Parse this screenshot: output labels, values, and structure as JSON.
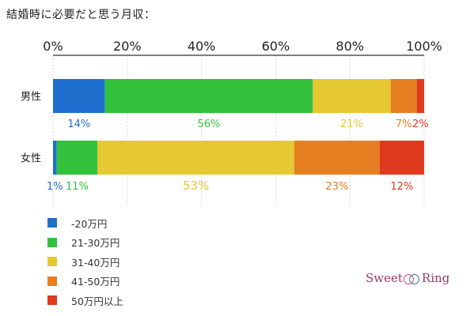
{
  "chart_data": {
    "type": "bar",
    "orientation": "horizontal",
    "stacked": true,
    "title": "結婚時に必要だと思う月収：",
    "categories": [
      "男性",
      "女性"
    ],
    "xlim": [
      0,
      100
    ],
    "x_ticks": [
      "0%",
      "20%",
      "40%",
      "60%",
      "80%",
      "100%"
    ],
    "grid": true,
    "legend_position": "bottom-left",
    "series": [
      {
        "name": "-20万円",
        "color": "#1f6fcf",
        "values": [
          14,
          1
        ],
        "labels": [
          "14%",
          "1%"
        ]
      },
      {
        "name": "21-30万円",
        "color": "#33c13c",
        "values": [
          56,
          11
        ],
        "labels": [
          "56%",
          "11%"
        ]
      },
      {
        "name": "31-40万円",
        "color": "#e6c832",
        "values": [
          21,
          53
        ],
        "labels": [
          "21%",
          "53%"
        ]
      },
      {
        "name": "41-50万円",
        "color": "#e67e22",
        "values": [
          7,
          23
        ],
        "labels": [
          "7%",
          "23%"
        ]
      },
      {
        "name": "50万円以上",
        "color": "#e03a1e",
        "values": [
          2,
          12
        ],
        "labels": [
          "2%",
          "12%"
        ]
      }
    ]
  },
  "logo": {
    "left": "Sweet",
    "right": "Ring"
  }
}
